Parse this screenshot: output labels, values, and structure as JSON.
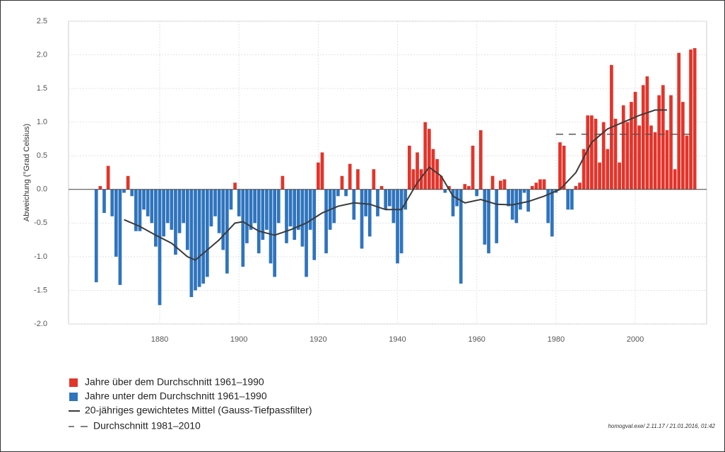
{
  "chart_data": {
    "type": "bar",
    "y_label": "Abweichung (°Grad Celsius)",
    "x_start": 1864,
    "values": [
      -1.38,
      0.05,
      -0.35,
      0.35,
      -0.4,
      -1.0,
      -1.42,
      -0.05,
      0.2,
      -0.1,
      -0.62,
      -0.62,
      -0.3,
      -0.4,
      -0.5,
      -0.85,
      -1.72,
      -0.7,
      -0.5,
      -0.6,
      -0.97,
      -0.65,
      -0.5,
      -0.9,
      -1.6,
      -1.5,
      -1.45,
      -1.4,
      -1.3,
      -0.55,
      -0.4,
      -0.65,
      -0.9,
      -1.25,
      -0.3,
      0.1,
      -0.4,
      -1.15,
      -0.8,
      -0.6,
      -0.5,
      -0.95,
      -0.75,
      -0.6,
      -1.1,
      -1.3,
      -0.5,
      0.2,
      -0.8,
      -0.55,
      -0.75,
      -0.6,
      -0.85,
      -1.3,
      -0.6,
      -1.05,
      0.4,
      0.55,
      -0.95,
      -0.6,
      -0.5,
      -0.1,
      0.2,
      -0.1,
      0.38,
      -0.45,
      0.3,
      -0.88,
      -0.4,
      -0.7,
      0.3,
      -0.4,
      0.05,
      -0.3,
      -0.25,
      -0.5,
      -1.1,
      -0.95,
      -0.3,
      0.65,
      0.3,
      0.55,
      0.3,
      1.0,
      0.9,
      0.6,
      0.45,
      0.2,
      -0.05,
      0.05,
      -0.4,
      -0.25,
      -1.4,
      0.08,
      0.05,
      0.65,
      -0.1,
      0.88,
      -0.82,
      -0.95,
      0.2,
      -0.8,
      0.13,
      0.15,
      -0.25,
      -0.45,
      -0.5,
      -0.3,
      -0.05,
      -0.33,
      0.05,
      0.1,
      0.15,
      0.15,
      -0.5,
      -0.7,
      -0.05,
      0.7,
      0.65,
      -0.3,
      -0.3,
      0.05,
      0.1,
      0.6,
      1.1,
      1.1,
      1.05,
      0.4,
      1.0,
      0.6,
      1.85,
      1.05,
      0.4,
      1.25,
      1.0,
      1.3,
      1.45,
      0.95,
      1.55,
      1.68,
      0.95,
      0.85,
      1.4,
      1.55,
      0.88,
      1.4,
      0.3,
      2.03,
      1.3,
      0.8,
      2.08,
      2.1
    ],
    "colors": {
      "above": "#e3342a",
      "below": "#2f74bd",
      "smooth": "#3a3a3a",
      "mean": "#555555"
    },
    "smooth": {
      "x": [
        1871,
        1875,
        1879,
        1883,
        1887,
        1889,
        1891,
        1895,
        1899,
        1901,
        1905,
        1909,
        1913,
        1917,
        1921,
        1925,
        1929,
        1933,
        1937,
        1941,
        1945,
        1948,
        1951,
        1954,
        1957,
        1961,
        1965,
        1969,
        1973,
        1977,
        1981,
        1985,
        1989,
        1993,
        1997,
        2001,
        2005,
        2008
      ],
      "values": [
        -0.45,
        -0.55,
        -0.68,
        -0.8,
        -1.0,
        -1.05,
        -0.95,
        -0.75,
        -0.5,
        -0.48,
        -0.62,
        -0.68,
        -0.6,
        -0.5,
        -0.35,
        -0.25,
        -0.2,
        -0.22,
        -0.3,
        -0.3,
        0.1,
        0.33,
        0.2,
        -0.1,
        -0.2,
        -0.15,
        -0.22,
        -0.23,
        -0.18,
        -0.1,
        0.0,
        0.25,
        0.7,
        0.9,
        1.0,
        1.1,
        1.18,
        1.18
      ]
    },
    "mean": {
      "value": 0.82,
      "x": [
        1980,
        2015
      ]
    },
    "xlim": [
      1857,
      2018
    ],
    "ylim": [
      -2.0,
      2.5
    ],
    "xticks": [
      1880,
      1900,
      1920,
      1940,
      1960,
      1980,
      2000
    ],
    "yticks": [
      2.5,
      {
        "value": 2.0,
        "label": "2.0"
      },
      1.5,
      {
        "value": 1.0,
        "label": "1.0"
      },
      0.5,
      {
        "value": 0.0,
        "label": "0.0"
      },
      -0.5,
      {
        "value": -1.0,
        "label": "-1.0"
      },
      -1.5,
      {
        "value": -2.0,
        "label": "-2.0"
      }
    ],
    "grid": true,
    "legend": [
      "Jahre über dem Durchschnitt 1961–1990",
      "Jahre unter dem Durchschnitt 1961–1990",
      "20-jähriges gewichtetes Mittel (Gauss-Tiefpassfilter)",
      "Durchschnitt 1981–2010"
    ],
    "footnote": "homogval.exe/ 2.11.17 / 21.01.2016, 01:42"
  }
}
